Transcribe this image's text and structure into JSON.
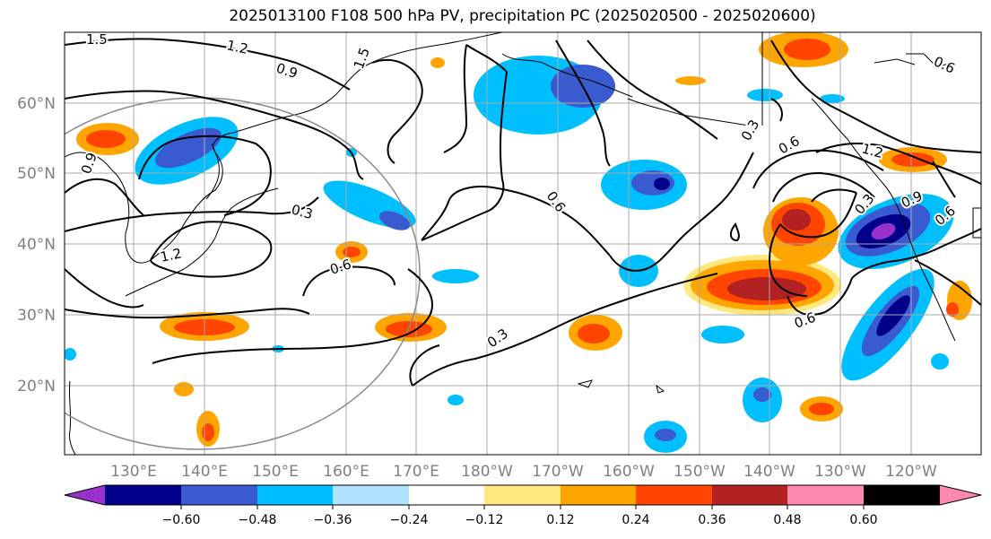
{
  "title": "2025013100 F108 500 hPa PV, precipitation PC (2025020500 - 2025020600)",
  "lat_labels": [
    "60°N",
    "50°N",
    "40°N",
    "30°N",
    "20°N"
  ],
  "lon_labels": [
    "130°E",
    "140°E",
    "150°E",
    "160°E",
    "170°E",
    "180°W",
    "170°W",
    "160°W",
    "150°W",
    "140°W",
    "130°W",
    "120°W"
  ],
  "colorbar": {
    "colors": [
      "#9932cc",
      "#00008b",
      "#3a5bd0",
      "#00bfff",
      "#b0e2ff",
      "#ffffff",
      "#ffe97f",
      "#ffa500",
      "#ff4500",
      "#b22222",
      "#ff88b0"
    ],
    "tick_labels": [
      "−0.60",
      "−0.48",
      "−0.36",
      "−0.24",
      "−0.12",
      "0.12",
      "0.24",
      "0.36",
      "0.48",
      "0.60"
    ]
  },
  "contour_labels": [
    "1.5",
    "1.2",
    "0.9",
    "1.5",
    "0.6",
    "0.3",
    "0.9",
    "0.3",
    "1.2",
    "0.6",
    "0.6",
    "0.3",
    "0.6",
    "0.3",
    "1.2",
    "0.9",
    "0.6",
    "0.6"
  ]
}
